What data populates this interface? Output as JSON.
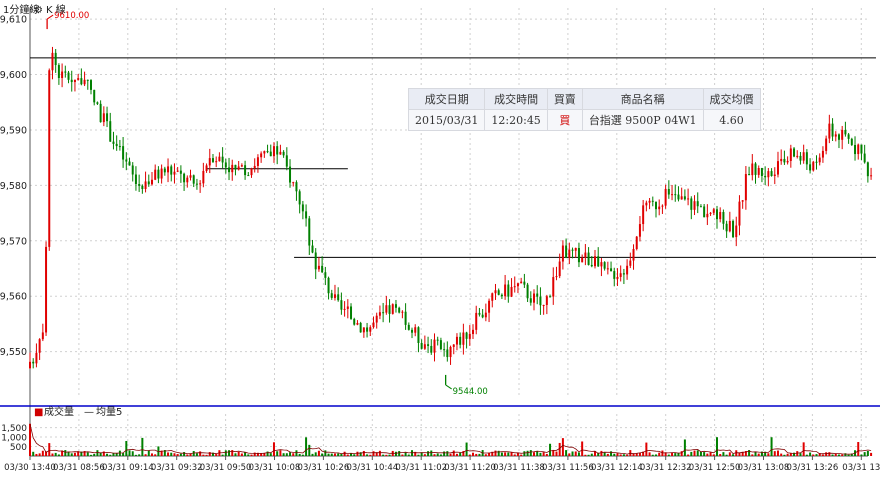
{
  "header": {
    "period_label": "1分鐘線",
    "kline_label": "K 線",
    "volume_label": "成交量",
    "ma_label": "均量5"
  },
  "trade_table": {
    "headers": [
      "成交日期",
      "成交時間",
      "買賣",
      "商品名稱",
      "成交均價"
    ],
    "row": [
      "2015/03/31",
      "12:20:45",
      "買",
      "台指選 9500P 04W1",
      "4.60"
    ]
  },
  "colors": {
    "up": "#e00000",
    "down": "#008000",
    "grid": "#d0d0d0",
    "separator": "#0000cc",
    "ma_line": "#800000"
  },
  "chart_data": [
    {
      "type": "candlestick",
      "ylim": [
        9542,
        9612
      ],
      "y_ticks": [
        "9,610",
        "9,600",
        "9,590",
        "9,580",
        "9,570",
        "9,560",
        "9,550"
      ],
      "x_ticks": [
        "03/30 13:40",
        "03/31 08:56",
        "03/31 09:14",
        "03/31 09:32",
        "03/31 09:50",
        "03/31 10:08",
        "03/31 10:26",
        "03/31 10:44",
        "03/31 11:02",
        "03/31 11:20",
        "03/31 11:38",
        "03/31 11:56",
        "03/31 12:14",
        "03/31 12:32",
        "03/31 12:50",
        "03/31 13:08",
        "03/31 13:26",
        "03/31 13"
      ],
      "annotations": [
        {
          "label": "9610.00",
          "value": 9610,
          "x_tick_index": 0.35
        },
        {
          "label": "9544.00",
          "value": 9544,
          "x_tick_index": 8.5
        }
      ],
      "horizontal_lines": [
        {
          "value": 9603,
          "x_from": 0,
          "x_to": 17.3
        },
        {
          "value": 9583,
          "x_from": 3.6,
          "x_to": 6.5
        },
        {
          "value": 9567,
          "x_from": 5.4,
          "x_to": 17.3
        }
      ],
      "anchors": [
        {
          "x": 0.0,
          "price": 9547
        },
        {
          "x": 0.3,
          "price": 9556
        },
        {
          "x": 0.4,
          "price": 9605
        },
        {
          "x": 0.6,
          "price": 9600
        },
        {
          "x": 1.1,
          "price": 9599
        },
        {
          "x": 1.6,
          "price": 9590
        },
        {
          "x": 2.2,
          "price": 9580
        },
        {
          "x": 2.8,
          "price": 9583
        },
        {
          "x": 3.4,
          "price": 9580
        },
        {
          "x": 3.7,
          "price": 9586
        },
        {
          "x": 4.3,
          "price": 9582
        },
        {
          "x": 4.7,
          "price": 9585
        },
        {
          "x": 5.1,
          "price": 9586
        },
        {
          "x": 5.5,
          "price": 9578
        },
        {
          "x": 5.8,
          "price": 9567
        },
        {
          "x": 6.3,
          "price": 9558
        },
        {
          "x": 6.9,
          "price": 9554
        },
        {
          "x": 7.4,
          "price": 9558
        },
        {
          "x": 8.0,
          "price": 9552
        },
        {
          "x": 8.5,
          "price": 9550
        },
        {
          "x": 9.0,
          "price": 9554
        },
        {
          "x": 9.5,
          "price": 9560
        },
        {
          "x": 10.0,
          "price": 9562
        },
        {
          "x": 10.5,
          "price": 9558
        },
        {
          "x": 10.9,
          "price": 9568
        },
        {
          "x": 11.4,
          "price": 9567
        },
        {
          "x": 11.8,
          "price": 9564
        },
        {
          "x": 12.2,
          "price": 9565
        },
        {
          "x": 12.5,
          "price": 9575
        },
        {
          "x": 13.0,
          "price": 9578
        },
        {
          "x": 13.5,
          "price": 9577
        },
        {
          "x": 14.1,
          "price": 9574
        },
        {
          "x": 14.4,
          "price": 9572
        },
        {
          "x": 14.7,
          "price": 9583
        },
        {
          "x": 15.2,
          "price": 9582
        },
        {
          "x": 15.6,
          "price": 9586
        },
        {
          "x": 16.1,
          "price": 9583
        },
        {
          "x": 16.3,
          "price": 9590
        },
        {
          "x": 16.8,
          "price": 9588
        },
        {
          "x": 17.2,
          "price": 9582
        }
      ],
      "volume": {
        "ylim": [
          0,
          1900
        ],
        "y_ticks": [
          "1,500",
          "1,000",
          "500"
        ],
        "peak": 1700
      }
    }
  ]
}
